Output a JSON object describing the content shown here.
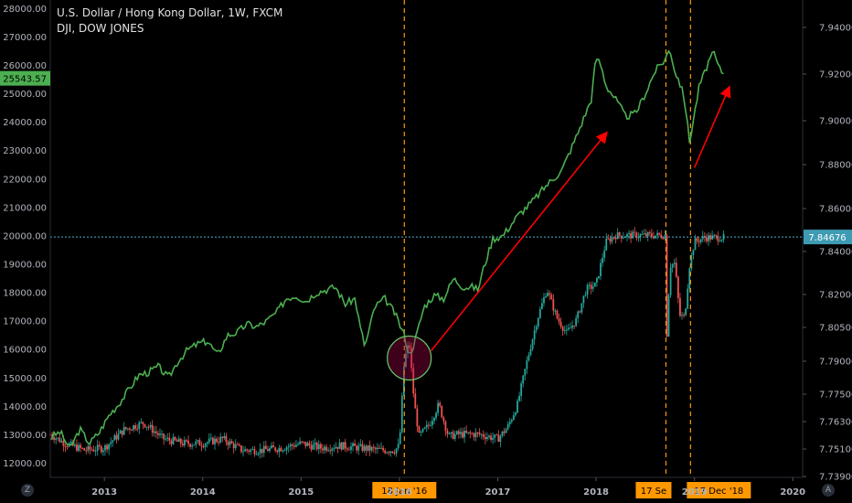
{
  "header": {
    "title": "U.S. Dollar / Hong Kong Dollar, 1W, FXCM",
    "subtitle": "DJI, DOW JONES"
  },
  "corner_left": "Z",
  "corner_right": "A",
  "colors": {
    "background": "#000000",
    "dji_line": "#4caf50",
    "candle_up": "#26a69a",
    "candle_down": "#ef5350",
    "price_line": "#4fb3c8",
    "event_line": "#ff9800",
    "arrow": "#ff0000",
    "circle": "#66cc66",
    "axis_text": "#b2b5be"
  },
  "chart_data": {
    "type": "line",
    "x_ticks": [
      "2013",
      "2014",
      "2015",
      "2016",
      "2017",
      "2018",
      "2019",
      "2020"
    ],
    "xlim": [
      2012.45,
      2020.1
    ],
    "left_axis": {
      "label": "DJI",
      "ticks": [
        "28000.00",
        "27000.00",
        "26000.00",
        "25000.00",
        "24000.00",
        "23000.00",
        "22000.00",
        "21000.00",
        "20000.00",
        "19000.00",
        "18000.00",
        "17000.00",
        "16000.00",
        "15000.00",
        "14000.00",
        "13000.00",
        "12000.00"
      ],
      "range": [
        11500,
        28300
      ],
      "current_value": "25543.57"
    },
    "right_axis": {
      "label": "USDHKD",
      "ticks": [
        "7.94000",
        "7.92000",
        "7.90000",
        "7.88000",
        "7.86000",
        "7.84000",
        "7.82000",
        "7.80500",
        "7.79000",
        "7.77500",
        "7.76300",
        "7.75100",
        "7.73900"
      ],
      "current_value": "7.84676"
    },
    "dji_series": {
      "x": [
        2012.45,
        2012.55,
        2012.65,
        2012.75,
        2012.85,
        2012.95,
        2013.05,
        2013.15,
        2013.25,
        2013.35,
        2013.45,
        2013.55,
        2013.65,
        2013.75,
        2013.85,
        2013.95,
        2014.05,
        2014.15,
        2014.25,
        2014.35,
        2014.45,
        2014.55,
        2014.65,
        2014.75,
        2014.85,
        2014.95,
        2015.05,
        2015.15,
        2015.25,
        2015.35,
        2015.45,
        2015.55,
        2015.6,
        2015.65,
        2015.75,
        2015.85,
        2015.95,
        2016.05,
        2016.1,
        2016.15,
        2016.25,
        2016.35,
        2016.45,
        2016.55,
        2016.65,
        2016.75,
        2016.8,
        2016.85,
        2016.95,
        2017.05,
        2017.2,
        2017.35,
        2017.5,
        2017.65,
        2017.8,
        2017.95,
        2018.0,
        2018.05,
        2018.1,
        2018.2,
        2018.3,
        2018.4,
        2018.5,
        2018.6,
        2018.7,
        2018.75,
        2018.8,
        2018.85,
        2018.9,
        2018.95,
        2019.0,
        2019.05,
        2019.1,
        2019.15,
        2019.2,
        2019.25,
        2019.3
      ],
      "values": [
        12900,
        13100,
        12500,
        13200,
        12700,
        13100,
        13700,
        14100,
        14600,
        15100,
        15200,
        15400,
        15000,
        15600,
        16000,
        16200,
        16300,
        15800,
        16500,
        16600,
        16900,
        16800,
        17000,
        17300,
        17800,
        17900,
        17700,
        18000,
        18100,
        18200,
        17600,
        17800,
        16800,
        16100,
        17500,
        17800,
        17300,
        16500,
        15800,
        16200,
        17500,
        17900,
        17800,
        18500,
        18200,
        18200,
        18100,
        18800,
        19900,
        20000,
        20700,
        21200,
        21800,
        22300,
        23500,
        24800,
        26300,
        26000,
        25300,
        24800,
        24200,
        24300,
        25000,
        25800,
        26200,
        26600,
        25800,
        25400,
        24800,
        23300,
        24300,
        25300,
        25700,
        26200,
        26400,
        25900,
        25700
      ]
    },
    "usdhkd_series": {
      "x": [
        2012.45,
        2012.6,
        2012.8,
        2013.0,
        2013.2,
        2013.4,
        2013.6,
        2013.8,
        2014.0,
        2014.2,
        2014.4,
        2014.6,
        2014.8,
        2015.0,
        2015.2,
        2015.4,
        2015.6,
        2015.8,
        2015.95,
        2016.0,
        2016.05,
        2016.1,
        2016.15,
        2016.2,
        2016.3,
        2016.4,
        2016.5,
        2016.6,
        2016.8,
        2017.0,
        2017.1,
        2017.2,
        2017.3,
        2017.4,
        2017.5,
        2017.6,
        2017.7,
        2017.8,
        2017.9,
        2018.0,
        2018.1,
        2018.2,
        2018.3,
        2018.5,
        2018.7,
        2018.72,
        2018.75,
        2018.8,
        2018.85,
        2018.9,
        2018.95,
        2019.0,
        2019.1,
        2019.2,
        2019.3
      ],
      "values": [
        7.7575,
        7.7535,
        7.7505,
        7.7515,
        7.7595,
        7.7625,
        7.7555,
        7.7535,
        7.7535,
        7.7555,
        7.7505,
        7.7505,
        7.7515,
        7.7535,
        7.7515,
        7.7525,
        7.7515,
        7.7505,
        7.7505,
        7.7525,
        7.7905,
        7.7985,
        7.7715,
        7.7565,
        7.7615,
        7.7705,
        7.7565,
        7.7575,
        7.7575,
        7.7555,
        7.7605,
        7.7705,
        7.7905,
        7.8085,
        7.8225,
        7.8095,
        7.8025,
        7.8085,
        7.8225,
        7.8245,
        7.8445,
        7.8475,
        7.8475,
        7.8475,
        7.8475,
        7.8005,
        7.8335,
        7.8345,
        7.8105,
        7.8095,
        7.8335,
        7.8445,
        7.8465,
        7.8465,
        7.8465
      ]
    },
    "events": [
      {
        "label": "18 Jan '16",
        "x": 2016.05
      },
      {
        "label": "17 Se",
        "x": 2018.71
      },
      {
        "label": "17 Dec '18",
        "x": 2018.96
      }
    ],
    "annotations": [
      "circle",
      "arrow",
      "arrow",
      "arrow"
    ],
    "grid": false,
    "legend": "top-left"
  }
}
